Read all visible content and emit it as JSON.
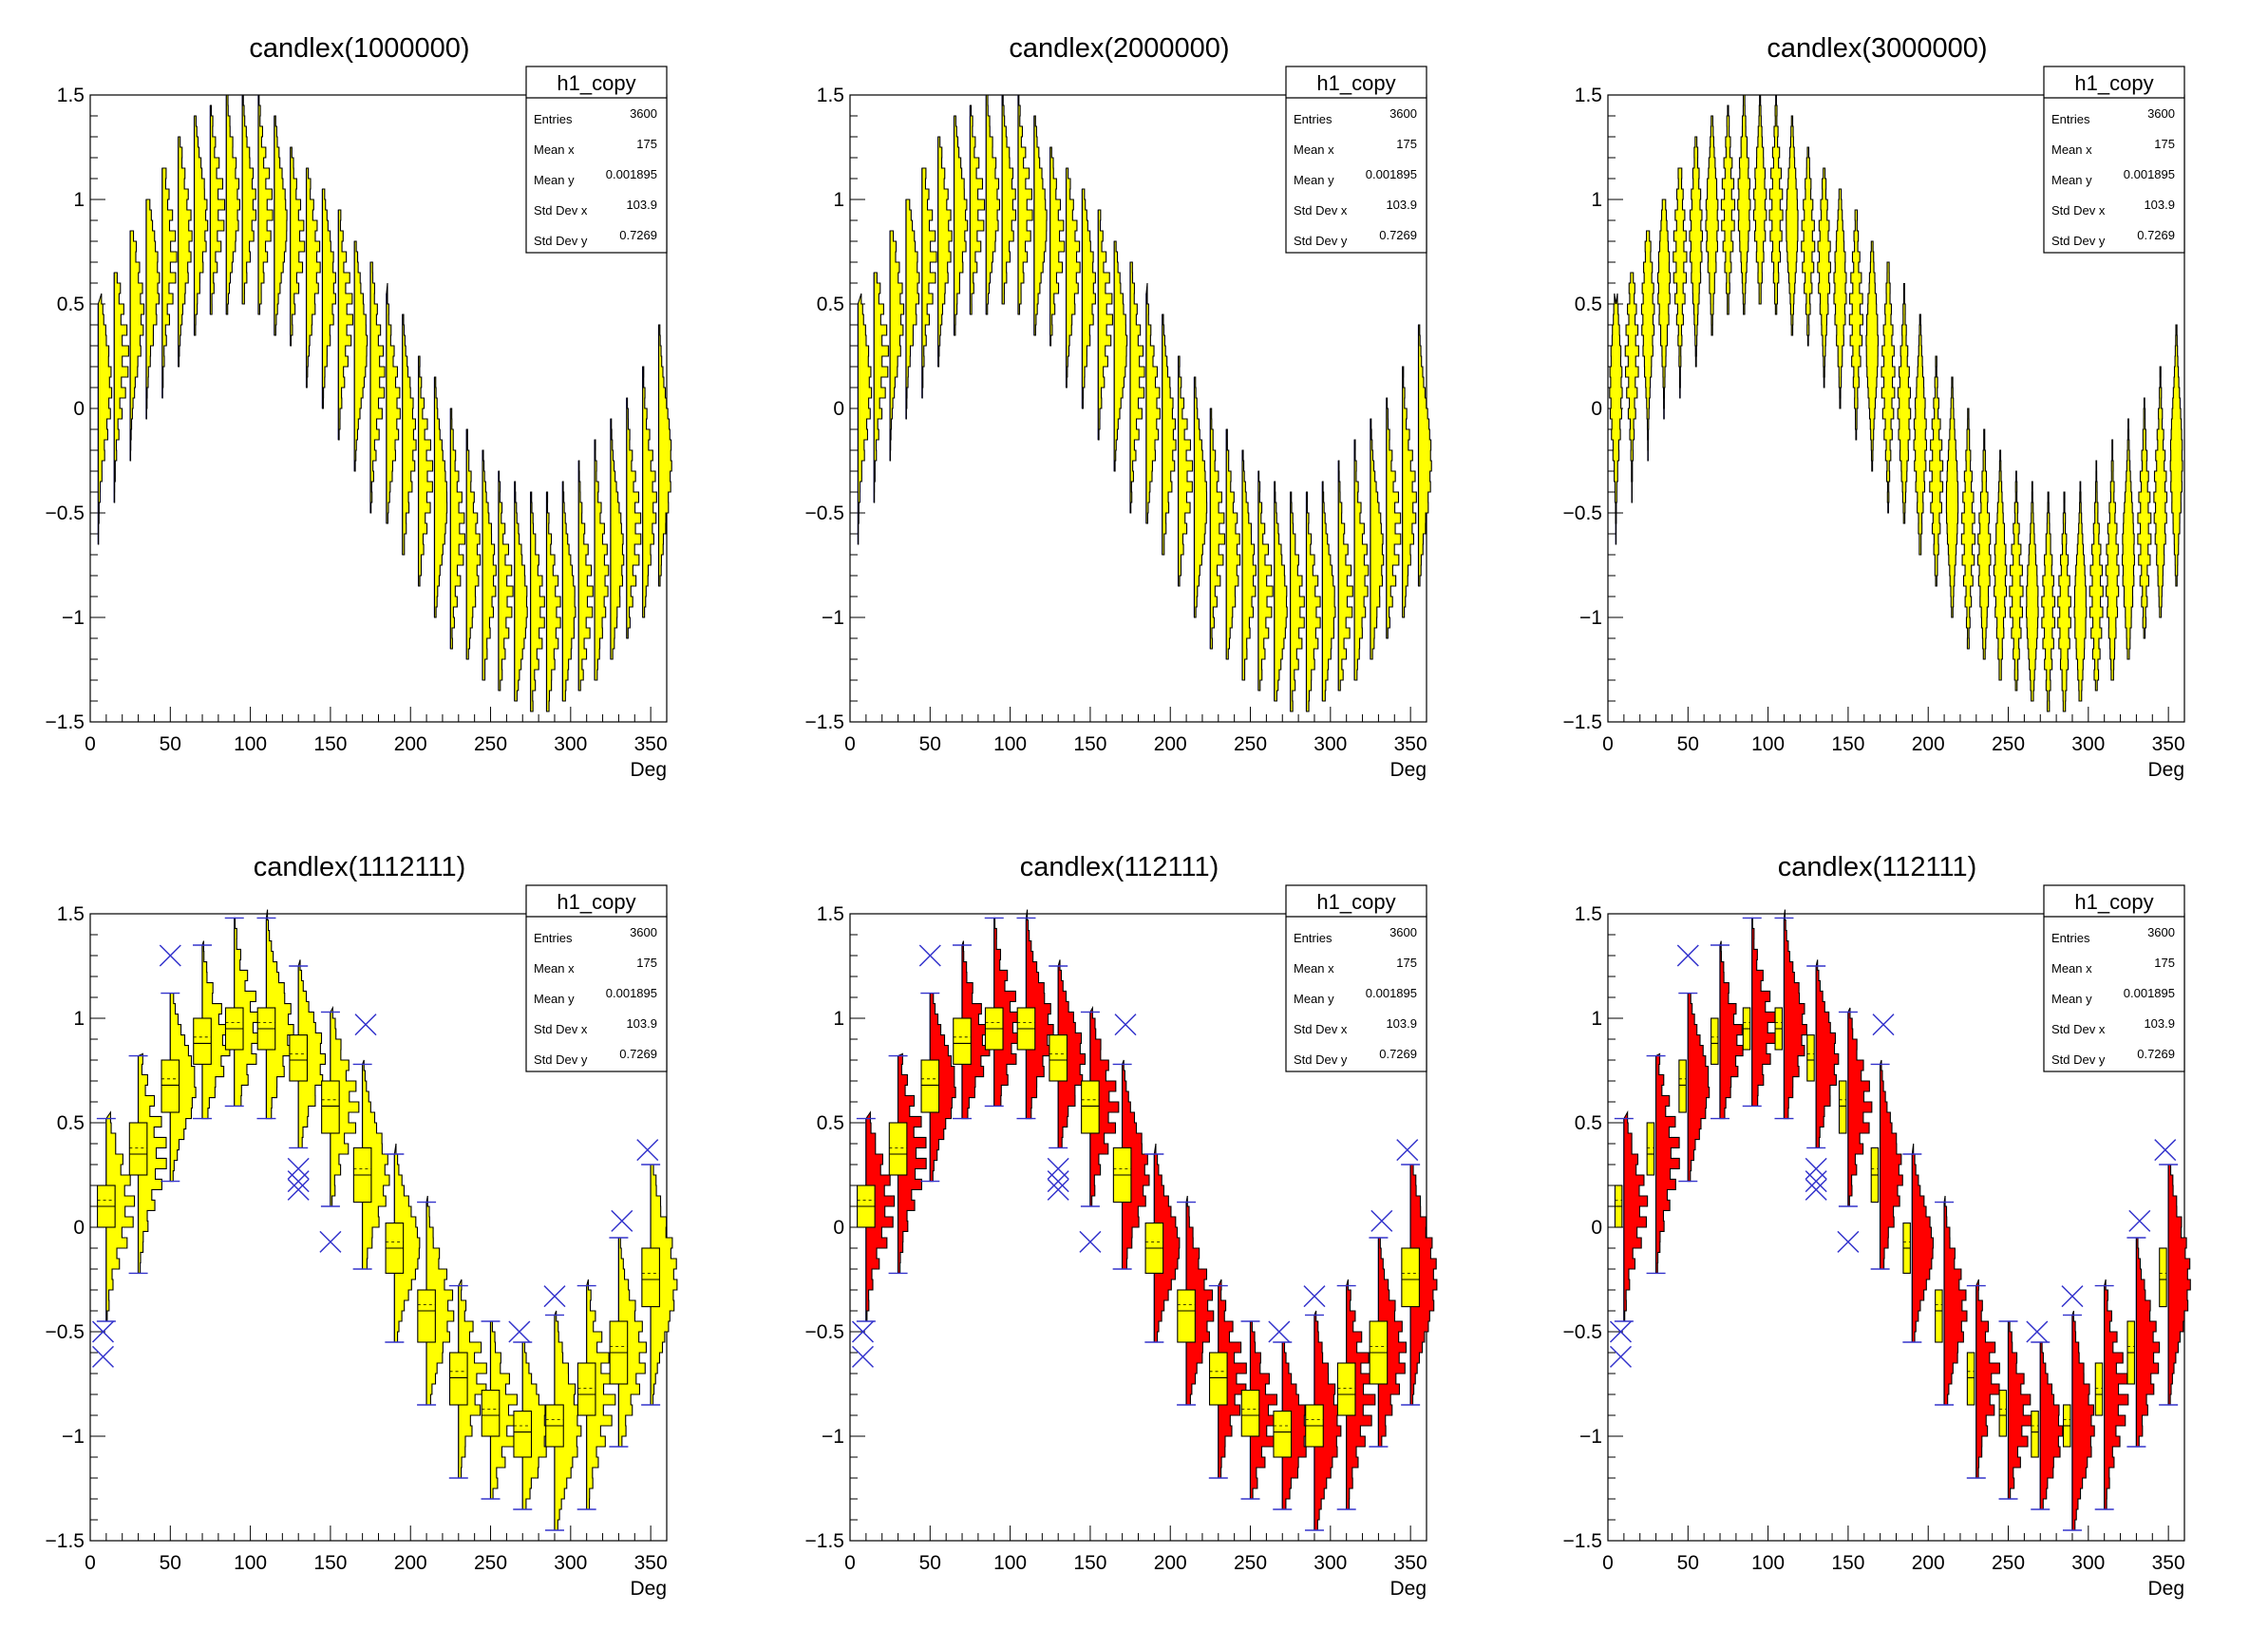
{
  "stats_labels": [
    "Entries",
    "Mean x",
    "Mean y",
    "Std Dev x",
    "Std Dev y"
  ],
  "colors": {
    "fill_yellow": "#ffff00",
    "fill_red": "#ff0000",
    "whisker_blue": "#3333cc",
    "outline": "#000000"
  },
  "chart_data": [
    {
      "type": "candle",
      "title": "candlex(1000000)",
      "xlabel": "Deg",
      "xlim": [
        0,
        360
      ],
      "ylim": [
        -1.5,
        1.5
      ],
      "xticks": [
        "0",
        "50",
        "100",
        "150",
        "200",
        "250",
        "300",
        "350"
      ],
      "yticks": [
        "−1.5",
        "−1",
        "−0.5",
        "0",
        "0.5",
        "1",
        "1.5"
      ],
      "fill": "#ffff00",
      "style": "histogram",
      "stats": {
        "name": "h1_copy",
        "values": [
          "3600",
          "175",
          "0.001895",
          "103.9",
          "0.7269"
        ]
      },
      "x": [
        5,
        15,
        25,
        35,
        45,
        55,
        65,
        75,
        85,
        95,
        105,
        115,
        125,
        135,
        145,
        155,
        165,
        175,
        185,
        195,
        205,
        215,
        225,
        235,
        245,
        255,
        265,
        275,
        285,
        295,
        305,
        315,
        325,
        335,
        345,
        355
      ],
      "median": [
        0.1,
        0.25,
        0.45,
        0.6,
        0.72,
        0.82,
        0.9,
        0.95,
        0.98,
        0.97,
        0.95,
        0.88,
        0.8,
        0.7,
        0.58,
        0.45,
        0.3,
        0.15,
        0.0,
        -0.15,
        -0.32,
        -0.45,
        -0.6,
        -0.7,
        -0.8,
        -0.88,
        -0.95,
        -0.97,
        -0.98,
        -0.95,
        -0.9,
        -0.8,
        -0.7,
        -0.58,
        -0.45,
        -0.25
      ],
      "lower": [
        -0.65,
        -0.45,
        -0.25,
        -0.05,
        0.05,
        0.2,
        0.35,
        0.45,
        0.45,
        0.5,
        0.45,
        0.35,
        0.3,
        0.1,
        0.0,
        -0.15,
        -0.3,
        -0.5,
        -0.55,
        -0.7,
        -0.85,
        -1.0,
        -1.15,
        -1.2,
        -1.3,
        -1.35,
        -1.4,
        -1.45,
        -1.45,
        -1.4,
        -1.35,
        -1.3,
        -1.2,
        -1.1,
        -1.0,
        -0.85
      ],
      "upper": [
        0.5,
        0.65,
        0.85,
        1.0,
        1.15,
        1.3,
        1.4,
        1.45,
        1.5,
        1.5,
        1.5,
        1.4,
        1.25,
        1.15,
        1.05,
        0.95,
        0.8,
        0.7,
        0.55,
        0.45,
        0.25,
        0.15,
        0.0,
        -0.1,
        -0.2,
        -0.3,
        -0.35,
        -0.4,
        -0.4,
        -0.35,
        -0.25,
        -0.15,
        -0.05,
        0.05,
        0.2,
        0.4
      ]
    },
    {
      "type": "candle",
      "title": "candlex(2000000)",
      "xlabel": "Deg",
      "xlim": [
        0,
        360
      ],
      "ylim": [
        -1.5,
        1.5
      ],
      "xticks": [
        "0",
        "50",
        "100",
        "150",
        "200",
        "250",
        "300",
        "350"
      ],
      "yticks": [
        "−1.5",
        "−1",
        "−0.5",
        "0",
        "0.5",
        "1",
        "1.5"
      ],
      "fill": "#ffff00",
      "style": "histogram",
      "stats": {
        "name": "h1_copy",
        "values": [
          "3600",
          "175",
          "0.001895",
          "103.9",
          "0.7269"
        ]
      },
      "x": [
        5,
        15,
        25,
        35,
        45,
        55,
        65,
        75,
        85,
        95,
        105,
        115,
        125,
        135,
        145,
        155,
        165,
        175,
        185,
        195,
        205,
        215,
        225,
        235,
        245,
        255,
        265,
        275,
        285,
        295,
        305,
        315,
        325,
        335,
        345,
        355
      ],
      "median": [
        0.1,
        0.25,
        0.45,
        0.6,
        0.72,
        0.82,
        0.9,
        0.95,
        0.98,
        0.97,
        0.95,
        0.88,
        0.8,
        0.7,
        0.58,
        0.45,
        0.3,
        0.15,
        0.0,
        -0.15,
        -0.32,
        -0.45,
        -0.6,
        -0.7,
        -0.8,
        -0.88,
        -0.95,
        -0.97,
        -0.98,
        -0.95,
        -0.9,
        -0.8,
        -0.7,
        -0.58,
        -0.45,
        -0.25
      ],
      "lower": [
        -0.65,
        -0.45,
        -0.25,
        -0.05,
        0.05,
        0.2,
        0.35,
        0.45,
        0.45,
        0.5,
        0.45,
        0.35,
        0.3,
        0.1,
        0.0,
        -0.15,
        -0.3,
        -0.5,
        -0.55,
        -0.7,
        -0.85,
        -1.0,
        -1.15,
        -1.2,
        -1.3,
        -1.35,
        -1.4,
        -1.45,
        -1.45,
        -1.4,
        -1.35,
        -1.3,
        -1.2,
        -1.1,
        -1.0,
        -0.85
      ],
      "upper": [
        0.5,
        0.65,
        0.85,
        1.0,
        1.15,
        1.3,
        1.4,
        1.45,
        1.5,
        1.5,
        1.5,
        1.4,
        1.25,
        1.15,
        1.05,
        0.95,
        0.8,
        0.7,
        0.55,
        0.45,
        0.25,
        0.15,
        0.0,
        -0.1,
        -0.2,
        -0.3,
        -0.35,
        -0.4,
        -0.4,
        -0.35,
        -0.25,
        -0.15,
        -0.05,
        0.05,
        0.2,
        0.4
      ]
    },
    {
      "type": "candle",
      "title": "candlex(3000000)",
      "xlabel": "Deg",
      "xlim": [
        0,
        360
      ],
      "ylim": [
        -1.5,
        1.5
      ],
      "xticks": [
        "0",
        "50",
        "100",
        "150",
        "200",
        "250",
        "300",
        "350"
      ],
      "yticks": [
        "−1.5",
        "−1",
        "−0.5",
        "0",
        "0.5",
        "1",
        "1.5"
      ],
      "fill": "#ffff00",
      "style": "violin",
      "stats": {
        "name": "h1_copy",
        "values": [
          "3600",
          "175",
          "0.001895",
          "103.9",
          "0.7269"
        ]
      },
      "x": [
        5,
        15,
        25,
        35,
        45,
        55,
        65,
        75,
        85,
        95,
        105,
        115,
        125,
        135,
        145,
        155,
        165,
        175,
        185,
        195,
        205,
        215,
        225,
        235,
        245,
        255,
        265,
        275,
        285,
        295,
        305,
        315,
        325,
        335,
        345,
        355
      ],
      "median": [
        0.1,
        0.25,
        0.45,
        0.6,
        0.72,
        0.82,
        0.9,
        0.95,
        0.98,
        0.97,
        0.95,
        0.88,
        0.8,
        0.7,
        0.58,
        0.45,
        0.3,
        0.15,
        0.0,
        -0.15,
        -0.32,
        -0.45,
        -0.6,
        -0.7,
        -0.8,
        -0.88,
        -0.95,
        -0.97,
        -0.98,
        -0.95,
        -0.9,
        -0.8,
        -0.7,
        -0.58,
        -0.45,
        -0.25
      ],
      "lower": [
        -0.65,
        -0.45,
        -0.25,
        -0.05,
        0.05,
        0.2,
        0.35,
        0.45,
        0.45,
        0.5,
        0.45,
        0.35,
        0.3,
        0.1,
        0.0,
        -0.15,
        -0.3,
        -0.5,
        -0.55,
        -0.7,
        -0.85,
        -1.0,
        -1.15,
        -1.2,
        -1.3,
        -1.35,
        -1.4,
        -1.45,
        -1.45,
        -1.4,
        -1.35,
        -1.3,
        -1.2,
        -1.1,
        -1.0,
        -0.85
      ],
      "upper": [
        0.5,
        0.65,
        0.85,
        1.0,
        1.15,
        1.3,
        1.4,
        1.45,
        1.5,
        1.5,
        1.5,
        1.4,
        1.25,
        1.15,
        1.05,
        0.95,
        0.8,
        0.7,
        0.55,
        0.45,
        0.25,
        0.15,
        0.0,
        -0.1,
        -0.2,
        -0.3,
        -0.35,
        -0.4,
        -0.4,
        -0.35,
        -0.25,
        -0.15,
        -0.05,
        0.05,
        0.2,
        0.4
      ]
    },
    {
      "type": "candle",
      "title": "candlex(1112111)",
      "xlabel": "Deg",
      "xlim": [
        0,
        360
      ],
      "ylim": [
        -1.5,
        1.5
      ],
      "xticks": [
        "0",
        "50",
        "100",
        "150",
        "200",
        "250",
        "300",
        "350"
      ],
      "yticks": [
        "−1.5",
        "−1",
        "−0.5",
        "0",
        "0.5",
        "1",
        "1.5"
      ],
      "fill": "#ffff00",
      "style": "histbox",
      "stats": {
        "name": "h1_copy",
        "values": [
          "3600",
          "175",
          "0.001895",
          "103.9",
          "0.7269"
        ]
      },
      "x": [
        10,
        30,
        50,
        70,
        90,
        110,
        130,
        150,
        170,
        190,
        210,
        230,
        250,
        270,
        290,
        310,
        330,
        350
      ],
      "median": [
        0.1,
        0.35,
        0.68,
        0.88,
        0.95,
        0.95,
        0.8,
        0.58,
        0.25,
        -0.1,
        -0.4,
        -0.72,
        -0.9,
        -0.98,
        -0.95,
        -0.8,
        -0.6,
        -0.25
      ],
      "q1": [
        0.0,
        0.25,
        0.55,
        0.78,
        0.85,
        0.85,
        0.7,
        0.45,
        0.12,
        -0.22,
        -0.55,
        -0.85,
        -1.0,
        -1.1,
        -1.05,
        -0.9,
        -0.75,
        -0.38
      ],
      "q3": [
        0.2,
        0.5,
        0.8,
        1.0,
        1.05,
        1.05,
        0.92,
        0.7,
        0.38,
        0.02,
        -0.3,
        -0.6,
        -0.78,
        -0.88,
        -0.85,
        -0.65,
        -0.45,
        -0.1
      ],
      "lower": [
        -0.45,
        -0.22,
        0.22,
        0.52,
        0.58,
        0.52,
        0.38,
        0.1,
        -0.2,
        -0.55,
        -0.85,
        -1.2,
        -1.3,
        -1.35,
        -1.45,
        -1.35,
        -1.05,
        -0.85
      ],
      "upper": [
        0.52,
        0.82,
        1.12,
        1.35,
        1.48,
        1.48,
        1.25,
        1.03,
        0.78,
        0.35,
        0.12,
        -0.28,
        -0.45,
        -0.55,
        -0.42,
        -0.28,
        -0.05,
        0.3
      ],
      "outliers": [
        [
          8,
          -0.5
        ],
        [
          8,
          -0.62
        ],
        [
          50,
          1.3
        ],
        [
          130,
          0.28
        ],
        [
          130,
          0.22
        ],
        [
          130,
          0.18
        ],
        [
          150,
          -0.07
        ],
        [
          172,
          0.97
        ],
        [
          268,
          -0.5
        ],
        [
          290,
          -0.33
        ],
        [
          332,
          0.03
        ],
        [
          348,
          0.37
        ]
      ]
    },
    {
      "type": "candle",
      "title": "candlex(112111)",
      "xlabel": "Deg",
      "xlim": [
        0,
        360
      ],
      "ylim": [
        -1.5,
        1.5
      ],
      "xticks": [
        "0",
        "50",
        "100",
        "150",
        "200",
        "250",
        "300",
        "350"
      ],
      "yticks": [
        "−1.5",
        "−1",
        "−0.5",
        "0",
        "0.5",
        "1",
        "1.5"
      ],
      "fill": "#ffff00",
      "hist_fill": "#ff0000",
      "style": "histbox",
      "stats": {
        "name": "h1_copy",
        "values": [
          "3600",
          "175",
          "0.001895",
          "103.9",
          "0.7269"
        ]
      },
      "x": [
        10,
        30,
        50,
        70,
        90,
        110,
        130,
        150,
        170,
        190,
        210,
        230,
        250,
        270,
        290,
        310,
        330,
        350
      ],
      "median": [
        0.1,
        0.35,
        0.68,
        0.88,
        0.95,
        0.95,
        0.8,
        0.58,
        0.25,
        -0.1,
        -0.4,
        -0.72,
        -0.9,
        -0.98,
        -0.95,
        -0.8,
        -0.6,
        -0.25
      ],
      "q1": [
        0.0,
        0.25,
        0.55,
        0.78,
        0.85,
        0.85,
        0.7,
        0.45,
        0.12,
        -0.22,
        -0.55,
        -0.85,
        -1.0,
        -1.1,
        -1.05,
        -0.9,
        -0.75,
        -0.38
      ],
      "q3": [
        0.2,
        0.5,
        0.8,
        1.0,
        1.05,
        1.05,
        0.92,
        0.7,
        0.38,
        0.02,
        -0.3,
        -0.6,
        -0.78,
        -0.88,
        -0.85,
        -0.65,
        -0.45,
        -0.1
      ],
      "lower": [
        -0.45,
        -0.22,
        0.22,
        0.52,
        0.58,
        0.52,
        0.38,
        0.1,
        -0.2,
        -0.55,
        -0.85,
        -1.2,
        -1.3,
        -1.35,
        -1.45,
        -1.35,
        -1.05,
        -0.85
      ],
      "upper": [
        0.52,
        0.82,
        1.12,
        1.35,
        1.48,
        1.48,
        1.25,
        1.03,
        0.78,
        0.35,
        0.12,
        -0.28,
        -0.45,
        -0.55,
        -0.42,
        -0.28,
        -0.05,
        0.3
      ],
      "outliers": [
        [
          8,
          -0.5
        ],
        [
          8,
          -0.62
        ],
        [
          50,
          1.3
        ],
        [
          130,
          0.28
        ],
        [
          130,
          0.22
        ],
        [
          130,
          0.18
        ],
        [
          150,
          -0.07
        ],
        [
          172,
          0.97
        ],
        [
          268,
          -0.5
        ],
        [
          290,
          -0.33
        ],
        [
          332,
          0.03
        ],
        [
          348,
          0.37
        ]
      ]
    },
    {
      "type": "candle",
      "title": "candlex(112111)",
      "xlabel": "Deg",
      "xlim": [
        0,
        360
      ],
      "ylim": [
        -1.5,
        1.5
      ],
      "xticks": [
        "0",
        "50",
        "100",
        "150",
        "200",
        "250",
        "300",
        "350"
      ],
      "yticks": [
        "−1.5",
        "−1",
        "−0.5",
        "0",
        "0.5",
        "1",
        "1.5"
      ],
      "fill": "#ffff00",
      "hist_fill": "#ff0000",
      "style": "histnarrow",
      "stats": {
        "name": "h1_copy",
        "values": [
          "3600",
          "175",
          "0.001895",
          "103.9",
          "0.7269"
        ]
      },
      "x": [
        10,
        30,
        50,
        70,
        90,
        110,
        130,
        150,
        170,
        190,
        210,
        230,
        250,
        270,
        290,
        310,
        330,
        350
      ],
      "median": [
        0.1,
        0.35,
        0.68,
        0.88,
        0.95,
        0.95,
        0.8,
        0.58,
        0.25,
        -0.1,
        -0.4,
        -0.72,
        -0.9,
        -0.98,
        -0.95,
        -0.8,
        -0.6,
        -0.25
      ],
      "q1": [
        0.0,
        0.25,
        0.55,
        0.78,
        0.85,
        0.85,
        0.7,
        0.45,
        0.12,
        -0.22,
        -0.55,
        -0.85,
        -1.0,
        -1.1,
        -1.05,
        -0.9,
        -0.75,
        -0.38
      ],
      "q3": [
        0.2,
        0.5,
        0.8,
        1.0,
        1.05,
        1.05,
        0.92,
        0.7,
        0.38,
        0.02,
        -0.3,
        -0.6,
        -0.78,
        -0.88,
        -0.85,
        -0.65,
        -0.45,
        -0.1
      ],
      "lower": [
        -0.45,
        -0.22,
        0.22,
        0.52,
        0.58,
        0.52,
        0.38,
        0.1,
        -0.2,
        -0.55,
        -0.85,
        -1.2,
        -1.3,
        -1.35,
        -1.45,
        -1.35,
        -1.05,
        -0.85
      ],
      "upper": [
        0.52,
        0.82,
        1.12,
        1.35,
        1.48,
        1.48,
        1.25,
        1.03,
        0.78,
        0.35,
        0.12,
        -0.28,
        -0.45,
        -0.55,
        -0.42,
        -0.28,
        -0.05,
        0.3
      ],
      "outliers": [
        [
          8,
          -0.5
        ],
        [
          8,
          -0.62
        ],
        [
          50,
          1.3
        ],
        [
          130,
          0.28
        ],
        [
          130,
          0.22
        ],
        [
          130,
          0.18
        ],
        [
          150,
          -0.07
        ],
        [
          172,
          0.97
        ],
        [
          268,
          -0.5
        ],
        [
          290,
          -0.33
        ],
        [
          332,
          0.03
        ],
        [
          348,
          0.37
        ]
      ]
    }
  ]
}
